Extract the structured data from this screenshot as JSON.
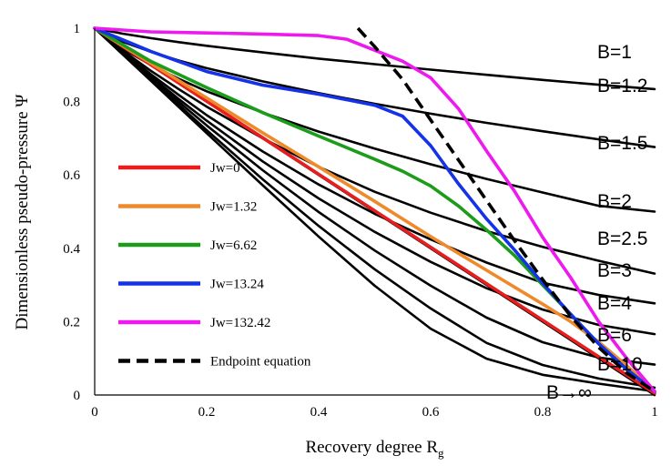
{
  "chart_data": {
    "type": "line",
    "xlabel": "Recovery degree R",
    "xlabel_sub": "g",
    "ylabel": "Dimensionless pseudo-pressure Ψ",
    "xlim": [
      0,
      1
    ],
    "ylim": [
      0,
      1
    ],
    "x_ticks": [
      "0",
      "0.2",
      "0.4",
      "0.6",
      "0.8",
      "1"
    ],
    "y_ticks": [
      "0",
      "0.2",
      "0.4",
      "0.6",
      "0.8",
      "1"
    ],
    "grid": false,
    "legend_position": "left",
    "b_series": [
      {
        "name": "B=1",
        "x": [
          0,
          0.05,
          0.1,
          0.15,
          0.2,
          0.3,
          0.4,
          0.5,
          0.6,
          0.7,
          0.8,
          0.9,
          1.0
        ],
        "y": [
          1,
          0.985,
          0.973,
          0.962,
          0.952,
          0.934,
          0.917,
          0.902,
          0.887,
          0.873,
          0.859,
          0.846,
          0.834
        ]
      },
      {
        "name": "B=1.2",
        "x": [
          0,
          0.05,
          0.1,
          0.15,
          0.2,
          0.3,
          0.4,
          0.5,
          0.6,
          0.7,
          0.8,
          0.9,
          1.0
        ],
        "y": [
          1,
          0.963,
          0.936,
          0.912,
          0.891,
          0.855,
          0.823,
          0.794,
          0.767,
          0.742,
          0.719,
          0.697,
          0.676
        ]
      },
      {
        "name": "B=1.5",
        "x": [
          0,
          0.05,
          0.1,
          0.15,
          0.2,
          0.3,
          0.4,
          0.5,
          0.6,
          0.7,
          0.8,
          0.9,
          1.0
        ],
        "y": [
          1,
          0.944,
          0.9,
          0.862,
          0.828,
          0.77,
          0.718,
          0.672,
          0.629,
          0.589,
          0.552,
          0.516,
          0.5
        ]
      },
      {
        "name": "B=2",
        "x": [
          0,
          0.05,
          0.1,
          0.15,
          0.2,
          0.3,
          0.4,
          0.5,
          0.6,
          0.7,
          0.8,
          0.9,
          1.0
        ],
        "y": [
          1,
          0.939,
          0.884,
          0.834,
          0.786,
          0.7,
          0.622,
          0.554,
          0.497,
          0.447,
          0.404,
          0.366,
          0.331
        ]
      },
      {
        "name": "B=2.5",
        "x": [
          0,
          0.05,
          0.1,
          0.15,
          0.2,
          0.3,
          0.4,
          0.5,
          0.6,
          0.7,
          0.8,
          0.9,
          1.0
        ],
        "y": [
          1,
          0.936,
          0.875,
          0.818,
          0.763,
          0.664,
          0.574,
          0.494,
          0.424,
          0.361,
          0.306,
          0.273,
          0.25
        ]
      },
      {
        "name": "B=3",
        "x": [
          0,
          0.05,
          0.1,
          0.15,
          0.2,
          0.3,
          0.4,
          0.5,
          0.6,
          0.7,
          0.8,
          0.9,
          1.0
        ],
        "y": [
          1,
          0.934,
          0.869,
          0.807,
          0.748,
          0.637,
          0.536,
          0.445,
          0.363,
          0.291,
          0.233,
          0.191,
          0.166
        ]
      },
      {
        "name": "B=4",
        "x": [
          0,
          0.05,
          0.1,
          0.15,
          0.2,
          0.3,
          0.4,
          0.5,
          0.6,
          0.7,
          0.8,
          0.9,
          1.0
        ],
        "y": [
          1,
          0.932,
          0.865,
          0.799,
          0.735,
          0.613,
          0.499,
          0.394,
          0.298,
          0.211,
          0.144,
          0.102,
          0.083
        ]
      },
      {
        "name": "B=6",
        "x": [
          0,
          0.05,
          0.1,
          0.15,
          0.2,
          0.3,
          0.4,
          0.5,
          0.6,
          0.7,
          0.8,
          0.9,
          1.0
        ],
        "y": [
          1,
          0.93,
          0.86,
          0.791,
          0.722,
          0.588,
          0.461,
          0.343,
          0.236,
          0.142,
          0.082,
          0.045,
          0.02
        ]
      },
      {
        "name": "B=10",
        "x": [
          0,
          0.1,
          0.2,
          0.3,
          0.4,
          0.5,
          0.6,
          0.7,
          0.8,
          0.9,
          1.0
        ],
        "y": [
          1,
          0.857,
          0.714,
          0.572,
          0.432,
          0.298,
          0.181,
          0.099,
          0.055,
          0.031,
          0.01
        ]
      },
      {
        "name": "B→∞",
        "x": [
          0,
          1
        ],
        "y": [
          1,
          0
        ]
      }
    ],
    "b_labels": [
      "B=1",
      "B=1.2",
      "B=1.5",
      "B=2",
      "B=2.5",
      "B=3",
      "B=4",
      "B=6",
      "B=10",
      "B→∞"
    ],
    "jw_series": [
      {
        "name": "Jw=0",
        "color": "#e81e1e",
        "x": [
          0,
          1
        ],
        "y": [
          1,
          0.005
        ]
      },
      {
        "name": "Jw=1.32",
        "color": "#ef8a2c",
        "x": [
          0,
          0.1,
          0.2,
          0.3,
          0.4,
          0.5,
          0.6,
          0.7,
          0.8,
          0.85,
          0.9,
          0.95,
          1.0
        ],
        "y": [
          1,
          0.905,
          0.81,
          0.715,
          0.622,
          0.528,
          0.432,
          0.34,
          0.248,
          0.2,
          0.145,
          0.08,
          0.01
        ]
      },
      {
        "name": "Jw=6.62",
        "color": "#1b9d1b",
        "x": [
          0,
          0.1,
          0.2,
          0.3,
          0.4,
          0.5,
          0.55,
          0.6,
          0.65,
          0.7,
          0.75,
          0.8,
          0.85,
          0.9,
          0.95,
          1.0
        ],
        "y": [
          1,
          0.91,
          0.838,
          0.77,
          0.706,
          0.643,
          0.61,
          0.57,
          0.515,
          0.45,
          0.38,
          0.3,
          0.22,
          0.14,
          0.07,
          0.01
        ]
      },
      {
        "name": "Jw=13.24",
        "color": "#1432e8",
        "x": [
          0,
          0.1,
          0.2,
          0.3,
          0.4,
          0.5,
          0.55,
          0.6,
          0.65,
          0.7,
          0.75,
          0.8,
          0.85,
          0.9,
          0.95,
          1.0
        ],
        "y": [
          1,
          0.937,
          0.882,
          0.845,
          0.82,
          0.79,
          0.76,
          0.68,
          0.575,
          0.48,
          0.395,
          0.305,
          0.22,
          0.14,
          0.07,
          0.01
        ]
      },
      {
        "name": "Jw=132.42",
        "color": "#ee19ee",
        "x": [
          0,
          0.1,
          0.2,
          0.3,
          0.4,
          0.45,
          0.5,
          0.55,
          0.6,
          0.65,
          0.7,
          0.75,
          0.8,
          0.85,
          0.9,
          0.95,
          1.0
        ],
        "y": [
          1,
          0.99,
          0.987,
          0.984,
          0.98,
          0.97,
          0.94,
          0.91,
          0.865,
          0.78,
          0.665,
          0.555,
          0.43,
          0.32,
          0.2,
          0.1,
          0.01
        ]
      }
    ],
    "endpoint_series": {
      "name": "Endpoint equation",
      "color": "#000000",
      "x": [
        0.47,
        0.5,
        0.55,
        0.6,
        0.65,
        0.7,
        0.75,
        0.8,
        0.85,
        0.9,
        0.95,
        1.0
      ],
      "y": [
        1.0,
        0.95,
        0.86,
        0.75,
        0.64,
        0.53,
        0.42,
        0.315,
        0.215,
        0.13,
        0.06,
        0.01
      ]
    }
  }
}
